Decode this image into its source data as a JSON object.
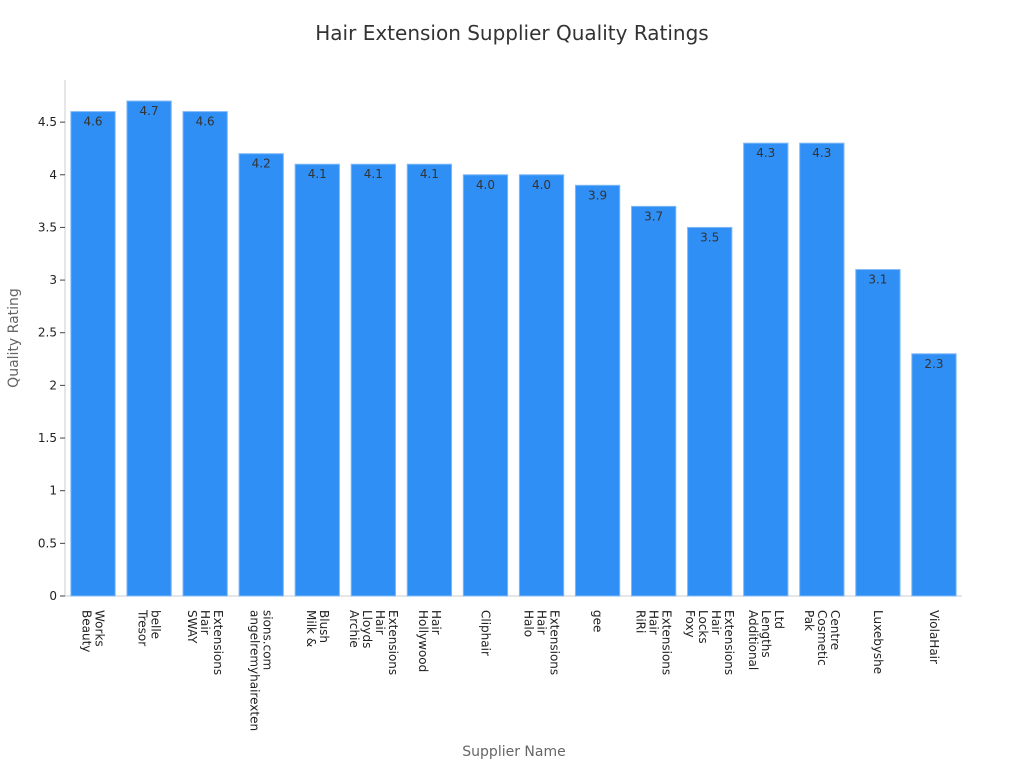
{
  "chart_data": {
    "type": "bar",
    "title": "Hair Extension Supplier Quality Ratings",
    "xlabel": "Supplier Name",
    "ylabel": "Quality Rating",
    "ylim": [
      0,
      4.9
    ],
    "yticks": [
      "0",
      "0.5",
      "1",
      "1.5",
      "2",
      "2.5",
      "3",
      "3.5",
      "4",
      "4.5"
    ],
    "ytick_values": [
      0,
      0.5,
      1,
      1.5,
      2,
      2.5,
      3,
      3.5,
      4,
      4.5
    ],
    "grid": false,
    "bar_color": "#2f8ff5",
    "categories": [
      [
        "Beauty",
        "Works"
      ],
      [
        "Tresor",
        "belle"
      ],
      [
        "SWAY",
        "Hair",
        "Extensions"
      ],
      [
        "angelremyhairexten",
        "sions.com"
      ],
      [
        "Milk &",
        "Blush"
      ],
      [
        "Archie",
        "Lloyds",
        "Hair",
        "Extensions"
      ],
      [
        "Hollywood",
        "Hair"
      ],
      [
        "Cliphair"
      ],
      [
        "Halo",
        "Hair",
        "Extensions"
      ],
      [
        "gee"
      ],
      [
        "RiRi",
        "Hair",
        "Extensions"
      ],
      [
        "Foxy",
        "Locks",
        "Hair",
        "Extensions"
      ],
      [
        "Additional",
        "Lengths",
        "Ltd"
      ],
      [
        "Pak",
        "Cosmetic",
        "Centre"
      ],
      [
        "Luxebyshe"
      ],
      [
        "ViolaHair"
      ]
    ],
    "values": [
      4.6,
      4.7,
      4.6,
      4.2,
      4.1,
      4.1,
      4.1,
      4.0,
      4.0,
      3.9,
      3.7,
      3.5,
      4.3,
      4.3,
      3.1,
      2.3
    ],
    "data_labels": [
      "4.6",
      "4.7",
      "4.6",
      "4.2",
      "4.1",
      "4.1",
      "4.1",
      "4.0",
      "4.0",
      "3.9",
      "3.7",
      "3.5",
      "4.3",
      "4.3",
      "3.1",
      "2.3"
    ]
  }
}
